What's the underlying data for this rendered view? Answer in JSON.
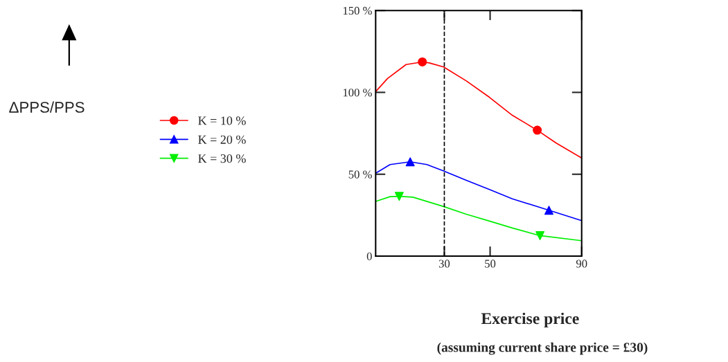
{
  "chart_data": {
    "type": "line",
    "xlabel": "Exercise price",
    "annotations": [
      "ΔPPS/PPS",
      "(assuming current share price = £30)"
    ],
    "xlim": [
      0,
      90
    ],
    "xticks": [
      30,
      50,
      90
    ],
    "ylim": [
      0,
      150
    ],
    "yticks": [
      0,
      {
        "value": 50,
        "label": "50 %"
      },
      {
        "value": 100,
        "label": "100 %"
      },
      {
        "value": 150,
        "label": "150 %"
      }
    ],
    "grid": false,
    "legend": "left",
    "ref_lines": [
      {
        "axis": "x",
        "value": 30,
        "line_style": "dashed",
        "color": "#000000"
      }
    ],
    "series": [
      {
        "name": "K = 10 %",
        "color": "#ff0000",
        "x": [
          0,
          5.2,
          13.3,
          20.4,
          23.4,
          29.7,
          39.6,
          49.7,
          59.7,
          70.6,
          78.9,
          90
        ],
        "values": [
          100.4,
          108.5,
          117,
          118.6,
          118,
          115.5,
          107,
          97,
          86,
          76.9,
          69,
          59.9
        ]
      },
      {
        "type": "scatter",
        "color": "#ff0000",
        "marker": "circle",
        "x": [
          20.4,
          70.6
        ],
        "values": [
          118.6,
          76.9
        ]
      },
      {
        "name": "K = 20 %",
        "color": "#0000ff",
        "x": [
          0,
          6.3,
          15.1,
          22.4,
          29.7,
          39.6,
          49.7,
          59.7,
          75.7,
          90
        ],
        "values": [
          50.6,
          55.9,
          57.6,
          55.9,
          52,
          46.3,
          40.7,
          35,
          28,
          21.7
        ]
      },
      {
        "type": "scatter",
        "color": "#0000ff",
        "marker": "triangle",
        "x": [
          15.1,
          75.7
        ],
        "values": [
          57.6,
          28
        ]
      },
      {
        "name": "K = 30 %",
        "color": "#00ee00",
        "x": [
          0,
          6.3,
          10.3,
          16.3,
          29.7,
          39.6,
          49.7,
          59.7,
          71.8,
          90
        ],
        "values": [
          33.4,
          36.3,
          36.5,
          36,
          30.3,
          25.6,
          21.4,
          17.2,
          12.5,
          9.4
        ]
      },
      {
        "type": "scatter",
        "color": "#00ee00",
        "marker": "triangle_down",
        "x": [
          10.3,
          71.8
        ],
        "values": [
          36.5,
          12.5
        ]
      }
    ]
  }
}
